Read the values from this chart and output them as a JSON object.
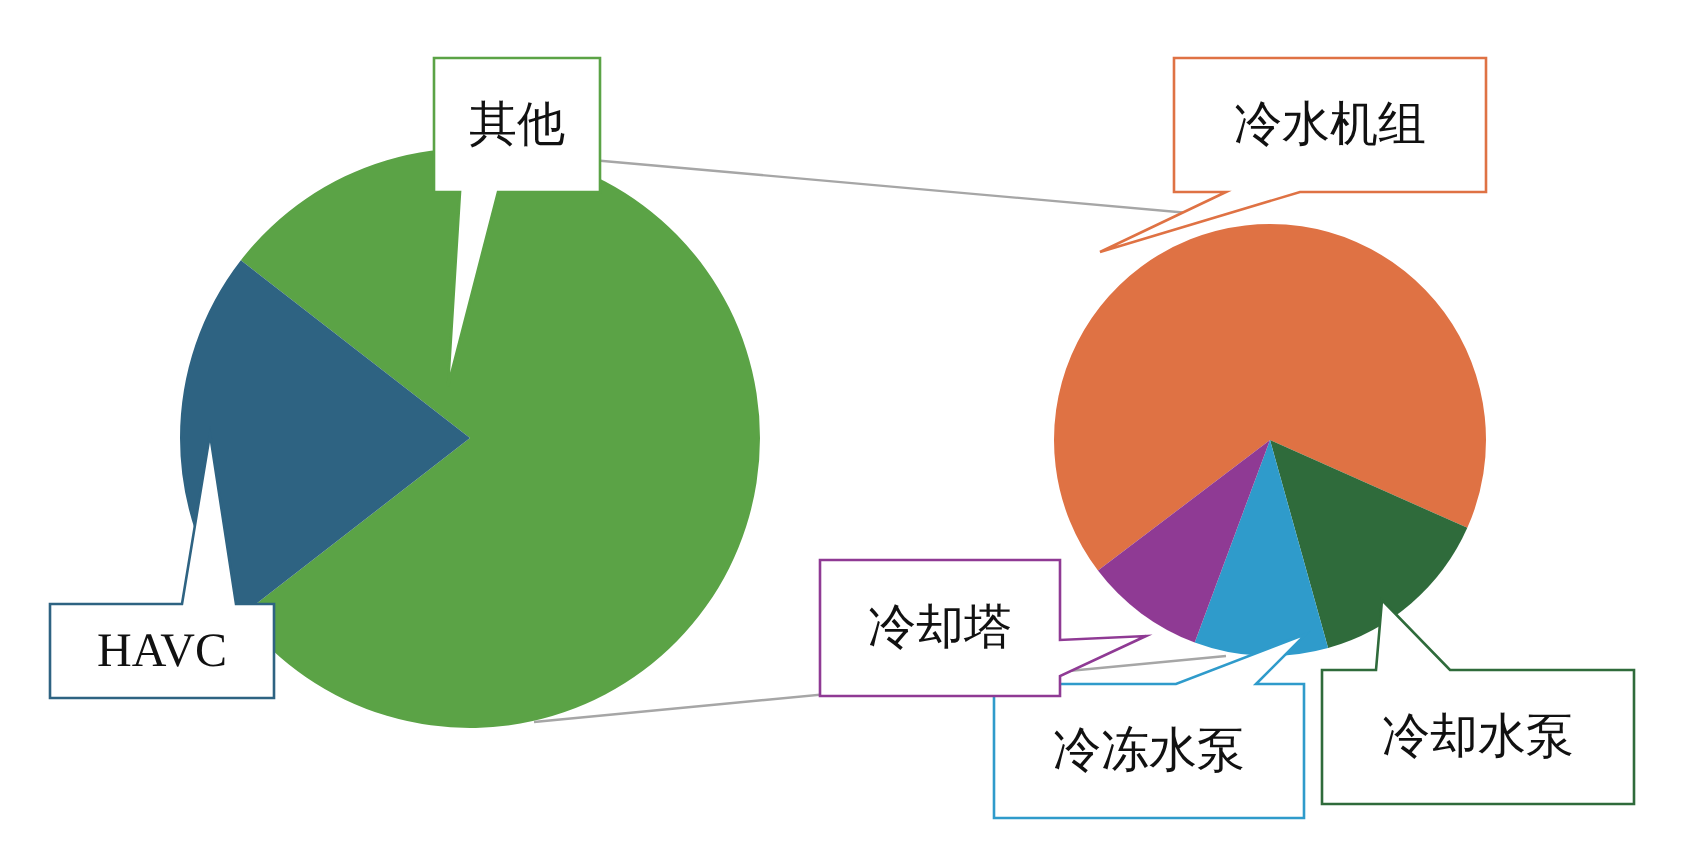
{
  "chart_data": [
    {
      "type": "pie",
      "categories": [
        "其他",
        "HAVC"
      ],
      "values": [
        79,
        21
      ],
      "colors": [
        "#5ba346",
        "#2e6382"
      ]
    },
    {
      "type": "pie",
      "categories": [
        "冷水机组",
        "冷却水泵",
        "冷冻水泵",
        "冷却塔"
      ],
      "values": [
        67,
        14,
        10,
        9
      ],
      "colors": [
        "#df7244",
        "#2f6b3b",
        "#2f9bcb",
        "#8f3a94"
      ]
    }
  ]
}
